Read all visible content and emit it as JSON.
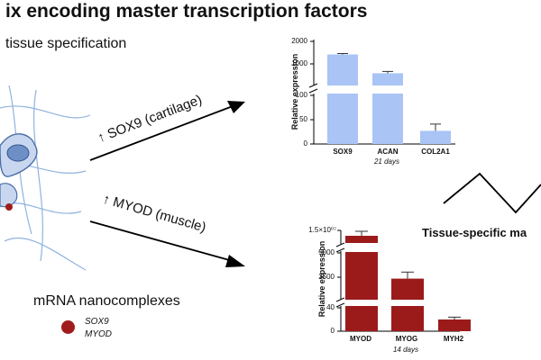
{
  "header": {
    "title": "ix encoding master transcription factors",
    "subtitle": "tissue specification"
  },
  "arrows": {
    "top_label": "↑ SOX9 (cartilage)",
    "bottom_label": "↑ MYOD (muscle)"
  },
  "legend": {
    "title": "mRNA nanocomplexes",
    "items": [
      "SOX9",
      "MYOD"
    ],
    "dot_color": "#a01c1c"
  },
  "right_text": "Tissue-specific ma",
  "chart_data": [
    {
      "type": "bar",
      "categories": [
        "SOX9",
        "ACAN",
        "COL2A1"
      ],
      "values": [
        1420,
        610,
        27
      ],
      "errors": [
        40,
        20,
        14
      ],
      "ylabel": "Relative expression",
      "xlabel": "21 days",
      "yticks_upper": [
        "2000",
        "1000"
      ],
      "yticks_lower": [
        "100",
        "50",
        "0"
      ],
      "break_at": 100,
      "color": "#a9c4f5"
    },
    {
      "type": "bar",
      "categories": [
        "MYOD",
        "MYOG",
        "MYH2"
      ],
      "values": [
        "1.5×10^7-range",
        2250,
        20
      ],
      "errors": [
        null,
        700,
        4
      ],
      "ylabel": "Relative expression",
      "xlabel": "14 days",
      "yticks": [
        "1.5×10⁰⁷",
        "5000",
        "2500",
        "40",
        "0"
      ],
      "color": "#9b1b1b"
    }
  ]
}
